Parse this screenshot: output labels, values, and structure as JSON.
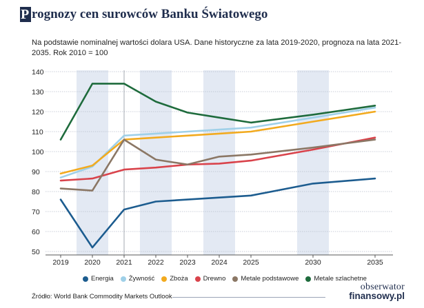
{
  "header": {
    "title_initial": "P",
    "title_rest": "rognozy cen surowców Banku Światowego",
    "subtitle": "Na podstawie nominalnej wartości dolara USA. Dane historyczne za lata 2019-2020, prognoza na lata 2021-2035. Rok 2010 = 100"
  },
  "footer": {
    "source": "Źródło: World Bank Commodity Markets Outlook",
    "logo_line1": "obserwator",
    "logo_line2": "finansowy.pl"
  },
  "colors": {
    "shade": "#e3e9f3",
    "grid": "#b8bfcc",
    "axis_text": "#222222"
  },
  "chart_data": {
    "type": "line",
    "title": "Prognozy cen surowców Banku Światowego",
    "categories": [
      "2019",
      "2020",
      "2021",
      "2022",
      "2023",
      "2024",
      "2025",
      "2030",
      "2035"
    ],
    "ylim": [
      50,
      140
    ],
    "yticks": [
      50,
      60,
      70,
      80,
      90,
      100,
      110,
      120,
      130,
      140
    ],
    "grid": true,
    "shaded_columns": [
      "2020",
      "2022",
      "2024",
      "2030"
    ],
    "divider_after": "2021",
    "legend_position": "bottom",
    "series": [
      {
        "name": "Energia",
        "color": "#1c5c8f",
        "values": [
          76,
          52,
          71,
          75,
          76,
          77,
          78,
          84,
          86.5
        ]
      },
      {
        "name": "Żywność",
        "color": "#9fd0e8",
        "values": [
          87,
          92.5,
          108,
          109,
          110,
          111,
          112,
          117,
          122
        ]
      },
      {
        "name": "Zboża",
        "color": "#f2aa1e",
        "values": [
          89,
          93,
          106,
          107,
          108,
          109,
          110,
          115,
          120
        ]
      },
      {
        "name": "Drewno",
        "color": "#d9434b",
        "values": [
          85.5,
          86.5,
          91,
          92,
          93.5,
          94,
          95.5,
          101,
          107
        ]
      },
      {
        "name": "Metale podstawowe",
        "color": "#8b7765",
        "values": [
          81.5,
          80.5,
          106,
          96,
          93.5,
          97.5,
          98.5,
          102,
          106
        ]
      },
      {
        "name": "Metale szlachetne",
        "color": "#1e6b3c",
        "values": [
          106,
          134,
          134,
          125,
          119.5,
          117,
          114.5,
          118.5,
          123
        ]
      }
    ]
  }
}
